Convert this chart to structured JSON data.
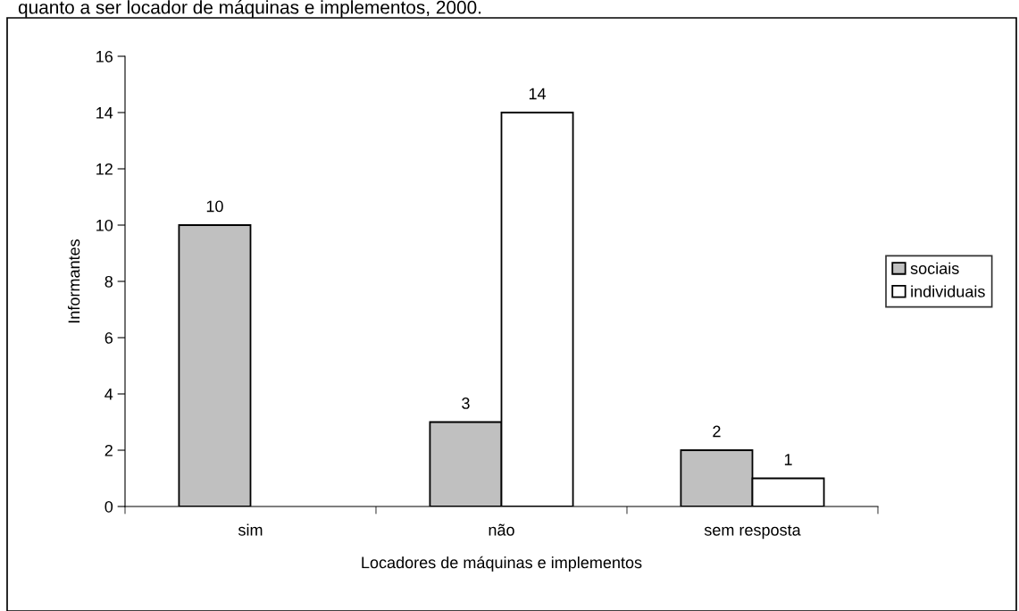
{
  "chart_data": {
    "type": "bar",
    "title": "quanto a ser locador de máquinas e implementos, 2000.",
    "xlabel": "Locadores de máquinas e implementos",
    "ylabel": "Informantes",
    "categories": [
      "sim",
      "não",
      "sem resposta"
    ],
    "series": [
      {
        "name": "sociais",
        "color": "#c0c0c0",
        "values": [
          10,
          3,
          2
        ]
      },
      {
        "name": "individuais",
        "color": "#ffffff",
        "values": [
          null,
          14,
          1
        ]
      }
    ],
    "ylim": [
      0,
      16
    ],
    "yticks": [
      0,
      2,
      4,
      6,
      8,
      10,
      12,
      14,
      16
    ],
    "data_labels": true,
    "grid": false,
    "legend": "right"
  }
}
